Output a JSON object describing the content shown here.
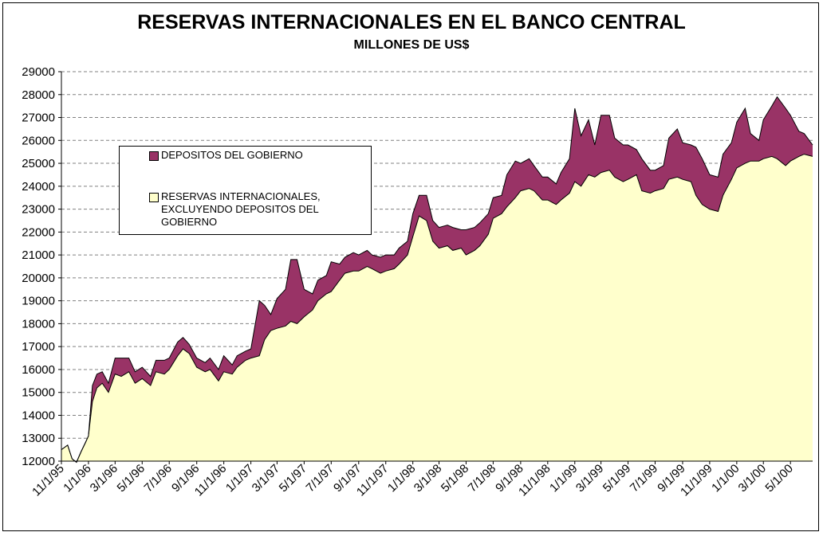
{
  "colors": {
    "deposits": "#993366",
    "reserves": "#FFFFCC",
    "outline": "#000000",
    "grid": "#808080"
  },
  "legend": {
    "deposits_label": "DEPOSITOS DEL GOBIERNO",
    "reserves_label": "RESERVAS INTERNACIONALES,\nEXCLUYENDO DEPOSITOS DEL\nGOBIERNO"
  },
  "chart_data": {
    "type": "area",
    "title": "RESERVAS INTERNACIONALES EN EL BANCO CENTRAL",
    "subtitle": "MILLONES DE US$",
    "xlabel": "",
    "ylabel": "",
    "ylim": [
      12000,
      29000
    ],
    "yticks": [
      12000,
      13000,
      14000,
      15000,
      16000,
      17000,
      18000,
      19000,
      20000,
      21000,
      22000,
      23000,
      24000,
      25000,
      26000,
      27000,
      28000,
      29000
    ],
    "xlim": [
      "1995-11-01",
      "2000-06-20"
    ],
    "x_tick_labels": [
      "11/1/95",
      "1/1/96",
      "3/1/96",
      "5/1/96",
      "7/1/96",
      "9/1/96",
      "11/1/96",
      "1/1/97",
      "3/1/97",
      "5/1/97",
      "7/1/97",
      "9/1/97",
      "11/1/97",
      "1/1/98",
      "3/1/98",
      "5/1/98",
      "7/1/98",
      "9/1/98",
      "11/1/98",
      "1/1/99",
      "3/1/99",
      "5/1/99",
      "7/1/99",
      "9/1/99",
      "11/1/99",
      "1/1/00",
      "3/1/00",
      "5/1/00"
    ],
    "x_tick_dates": [
      "1995-11-01",
      "1996-01-01",
      "1996-03-01",
      "1996-05-01",
      "1996-07-01",
      "1996-09-01",
      "1996-11-01",
      "1997-01-01",
      "1997-03-01",
      "1997-05-01",
      "1997-07-01",
      "1997-09-01",
      "1997-11-01",
      "1998-01-01",
      "1998-03-01",
      "1998-05-01",
      "1998-07-01",
      "1998-09-01",
      "1998-11-01",
      "1999-01-01",
      "1999-03-01",
      "1999-05-01",
      "1999-07-01",
      "1999-09-01",
      "1999-11-01",
      "2000-01-01",
      "2000-03-01",
      "2000-05-01"
    ],
    "grid": "horizontal-dashed",
    "legend_position": "upper-left",
    "stacked": true,
    "series": [
      {
        "name": "RESERVAS INTERNACIONALES, EXCLUYENDO DEPOSITOS DEL GOBIERNO",
        "color": "#FFFFCC",
        "points": [
          [
            "1995-11-01",
            12500
          ],
          [
            "1995-11-15",
            12700
          ],
          [
            "1995-11-25",
            12100
          ],
          [
            "1995-12-05",
            11950
          ],
          [
            "1995-12-15",
            12400
          ],
          [
            "1995-12-25",
            12800
          ],
          [
            "1996-01-01",
            13100
          ],
          [
            "1996-01-10",
            14600
          ],
          [
            "1996-01-20",
            15200
          ],
          [
            "1996-02-01",
            15400
          ],
          [
            "1996-02-15",
            15000
          ],
          [
            "1996-03-01",
            15800
          ],
          [
            "1996-03-15",
            15700
          ],
          [
            "1996-04-01",
            15900
          ],
          [
            "1996-04-15",
            15400
          ],
          [
            "1996-05-01",
            15600
          ],
          [
            "1996-05-20",
            15300
          ],
          [
            "1996-06-01",
            15900
          ],
          [
            "1996-06-20",
            15800
          ],
          [
            "1996-07-01",
            16000
          ],
          [
            "1996-07-20",
            16600
          ],
          [
            "1996-08-01",
            16900
          ],
          [
            "1996-08-15",
            16700
          ],
          [
            "1996-09-01",
            16100
          ],
          [
            "1996-09-20",
            15900
          ],
          [
            "1996-10-01",
            16000
          ],
          [
            "1996-10-20",
            15500
          ],
          [
            "1996-11-01",
            15900
          ],
          [
            "1996-11-20",
            15800
          ],
          [
            "1996-12-01",
            16100
          ],
          [
            "1996-12-20",
            16400
          ],
          [
            "1997-01-01",
            16500
          ],
          [
            "1997-01-20",
            16600
          ],
          [
            "1997-02-01",
            17300
          ],
          [
            "1997-02-15",
            17700
          ],
          [
            "1997-03-01",
            17800
          ],
          [
            "1997-03-20",
            17900
          ],
          [
            "1997-04-01",
            18100
          ],
          [
            "1997-04-15",
            18000
          ],
          [
            "1997-05-01",
            18300
          ],
          [
            "1997-05-20",
            18600
          ],
          [
            "1997-06-01",
            19000
          ],
          [
            "1997-06-20",
            19300
          ],
          [
            "1997-07-01",
            19400
          ],
          [
            "1997-07-20",
            19900
          ],
          [
            "1997-08-01",
            20200
          ],
          [
            "1997-08-20",
            20300
          ],
          [
            "1997-09-01",
            20300
          ],
          [
            "1997-09-20",
            20500
          ],
          [
            "1997-10-01",
            20400
          ],
          [
            "1997-10-20",
            20200
          ],
          [
            "1997-11-01",
            20300
          ],
          [
            "1997-11-20",
            20400
          ],
          [
            "1997-12-01",
            20600
          ],
          [
            "1997-12-20",
            21000
          ],
          [
            "1998-01-01",
            21800
          ],
          [
            "1998-01-15",
            22700
          ],
          [
            "1998-02-01",
            22500
          ],
          [
            "1998-02-15",
            21600
          ],
          [
            "1998-03-01",
            21300
          ],
          [
            "1998-03-20",
            21400
          ],
          [
            "1998-04-01",
            21200
          ],
          [
            "1998-04-20",
            21300
          ],
          [
            "1998-05-01",
            21000
          ],
          [
            "1998-05-20",
            21200
          ],
          [
            "1998-06-01",
            21400
          ],
          [
            "1998-06-20",
            21900
          ],
          [
            "1998-07-01",
            22600
          ],
          [
            "1998-07-20",
            22800
          ],
          [
            "1998-08-01",
            23100
          ],
          [
            "1998-08-20",
            23500
          ],
          [
            "1998-09-01",
            23800
          ],
          [
            "1998-09-20",
            23900
          ],
          [
            "1998-10-01",
            23800
          ],
          [
            "1998-10-20",
            23400
          ],
          [
            "1998-11-01",
            23400
          ],
          [
            "1998-11-20",
            23200
          ],
          [
            "1998-12-01",
            23400
          ],
          [
            "1998-12-20",
            23700
          ],
          [
            "1999-01-01",
            24200
          ],
          [
            "1999-01-15",
            24000
          ],
          [
            "1999-02-01",
            24500
          ],
          [
            "1999-02-15",
            24400
          ],
          [
            "1999-03-01",
            24600
          ],
          [
            "1999-03-20",
            24700
          ],
          [
            "1999-04-01",
            24400
          ],
          [
            "1999-04-20",
            24200
          ],
          [
            "1999-05-01",
            24300
          ],
          [
            "1999-05-20",
            24500
          ],
          [
            "1999-06-01",
            23800
          ],
          [
            "1999-06-20",
            23700
          ],
          [
            "1999-07-01",
            23800
          ],
          [
            "1999-07-20",
            23900
          ],
          [
            "1999-08-01",
            24300
          ],
          [
            "1999-08-20",
            24400
          ],
          [
            "1999-09-01",
            24300
          ],
          [
            "1999-09-20",
            24200
          ],
          [
            "1999-10-01",
            23600
          ],
          [
            "1999-10-15",
            23200
          ],
          [
            "1999-11-01",
            23000
          ],
          [
            "1999-11-20",
            22900
          ],
          [
            "1999-12-01",
            23600
          ],
          [
            "1999-12-20",
            24300
          ],
          [
            "2000-01-01",
            24800
          ],
          [
            "2000-01-20",
            25000
          ],
          [
            "2000-02-01",
            25100
          ],
          [
            "2000-02-20",
            25100
          ],
          [
            "2000-03-01",
            25200
          ],
          [
            "2000-03-20",
            25300
          ],
          [
            "2000-04-01",
            25200
          ],
          [
            "2000-04-20",
            24900
          ],
          [
            "2000-05-01",
            25100
          ],
          [
            "2000-05-20",
            25300
          ],
          [
            "2000-06-01",
            25400
          ],
          [
            "2000-06-20",
            25300
          ]
        ]
      },
      {
        "name": "DEPOSITOS DEL GOBIERNO",
        "color": "#993366",
        "points": [
          [
            "1995-11-01",
            0
          ],
          [
            "1995-11-15",
            0
          ],
          [
            "1995-11-25",
            0
          ],
          [
            "1995-12-05",
            0
          ],
          [
            "1995-12-15",
            0
          ],
          [
            "1995-12-25",
            0
          ],
          [
            "1996-01-01",
            0
          ],
          [
            "1996-01-10",
            700
          ],
          [
            "1996-01-20",
            600
          ],
          [
            "1996-02-01",
            500
          ],
          [
            "1996-02-15",
            400
          ],
          [
            "1996-03-01",
            700
          ],
          [
            "1996-03-15",
            800
          ],
          [
            "1996-04-01",
            600
          ],
          [
            "1996-04-15",
            500
          ],
          [
            "1996-05-01",
            500
          ],
          [
            "1996-05-20",
            400
          ],
          [
            "1996-06-01",
            500
          ],
          [
            "1996-06-20",
            600
          ],
          [
            "1996-07-01",
            500
          ],
          [
            "1996-07-20",
            600
          ],
          [
            "1996-08-01",
            500
          ],
          [
            "1996-08-15",
            400
          ],
          [
            "1996-09-01",
            400
          ],
          [
            "1996-09-20",
            400
          ],
          [
            "1996-10-01",
            500
          ],
          [
            "1996-10-20",
            500
          ],
          [
            "1996-11-01",
            700
          ],
          [
            "1996-11-20",
            400
          ],
          [
            "1996-12-01",
            500
          ],
          [
            "1996-12-20",
            400
          ],
          [
            "1997-01-01",
            400
          ],
          [
            "1997-01-20",
            2400
          ],
          [
            "1997-02-01",
            1500
          ],
          [
            "1997-02-15",
            700
          ],
          [
            "1997-03-01",
            1300
          ],
          [
            "1997-03-20",
            1600
          ],
          [
            "1997-04-01",
            2700
          ],
          [
            "1997-04-15",
            2800
          ],
          [
            "1997-05-01",
            1200
          ],
          [
            "1997-05-20",
            700
          ],
          [
            "1997-06-01",
            900
          ],
          [
            "1997-06-20",
            800
          ],
          [
            "1997-07-01",
            1300
          ],
          [
            "1997-07-20",
            700
          ],
          [
            "1997-08-01",
            700
          ],
          [
            "1997-08-20",
            800
          ],
          [
            "1997-09-01",
            700
          ],
          [
            "1997-09-20",
            700
          ],
          [
            "1997-10-01",
            600
          ],
          [
            "1997-10-20",
            700
          ],
          [
            "1997-11-01",
            700
          ],
          [
            "1997-11-20",
            600
          ],
          [
            "1997-12-01",
            700
          ],
          [
            "1997-12-20",
            600
          ],
          [
            "1998-01-01",
            1000
          ],
          [
            "1998-01-15",
            900
          ],
          [
            "1998-02-01",
            1100
          ],
          [
            "1998-02-15",
            900
          ],
          [
            "1998-03-01",
            900
          ],
          [
            "1998-03-20",
            900
          ],
          [
            "1998-04-01",
            1000
          ],
          [
            "1998-04-20",
            800
          ],
          [
            "1998-05-01",
            1100
          ],
          [
            "1998-05-20",
            1000
          ],
          [
            "1998-06-01",
            1000
          ],
          [
            "1998-06-20",
            900
          ],
          [
            "1998-07-01",
            900
          ],
          [
            "1998-07-20",
            800
          ],
          [
            "1998-08-01",
            1400
          ],
          [
            "1998-08-20",
            1600
          ],
          [
            "1998-09-01",
            1200
          ],
          [
            "1998-09-20",
            1300
          ],
          [
            "1998-10-01",
            1100
          ],
          [
            "1998-10-20",
            1000
          ],
          [
            "1998-11-01",
            1000
          ],
          [
            "1998-11-20",
            900
          ],
          [
            "1998-12-01",
            1200
          ],
          [
            "1998-12-20",
            1500
          ],
          [
            "1999-01-01",
            3200
          ],
          [
            "1999-01-15",
            2200
          ],
          [
            "1999-02-01",
            2400
          ],
          [
            "1999-02-15",
            1400
          ],
          [
            "1999-03-01",
            2500
          ],
          [
            "1999-03-20",
            2400
          ],
          [
            "1999-04-01",
            1700
          ],
          [
            "1999-04-20",
            1600
          ],
          [
            "1999-05-01",
            1500
          ],
          [
            "1999-05-20",
            1100
          ],
          [
            "1999-06-01",
            1400
          ],
          [
            "1999-06-20",
            1000
          ],
          [
            "1999-07-01",
            900
          ],
          [
            "1999-07-20",
            1000
          ],
          [
            "1999-08-01",
            1800
          ],
          [
            "1999-08-20",
            2100
          ],
          [
            "1999-09-01",
            1600
          ],
          [
            "1999-09-20",
            1600
          ],
          [
            "1999-10-01",
            2100
          ],
          [
            "1999-10-15",
            2000
          ],
          [
            "1999-11-01",
            1500
          ],
          [
            "1999-11-20",
            1500
          ],
          [
            "1999-12-01",
            1800
          ],
          [
            "1999-12-20",
            1600
          ],
          [
            "2000-01-01",
            2000
          ],
          [
            "2000-01-20",
            2400
          ],
          [
            "2000-02-01",
            1200
          ],
          [
            "2000-02-20",
            900
          ],
          [
            "2000-03-01",
            1700
          ],
          [
            "2000-03-20",
            2200
          ],
          [
            "2000-04-01",
            2700
          ],
          [
            "2000-04-20",
            2500
          ],
          [
            "2000-05-01",
            2000
          ],
          [
            "2000-05-20",
            1100
          ],
          [
            "2000-06-01",
            900
          ],
          [
            "2000-06-20",
            500
          ]
        ]
      }
    ]
  }
}
